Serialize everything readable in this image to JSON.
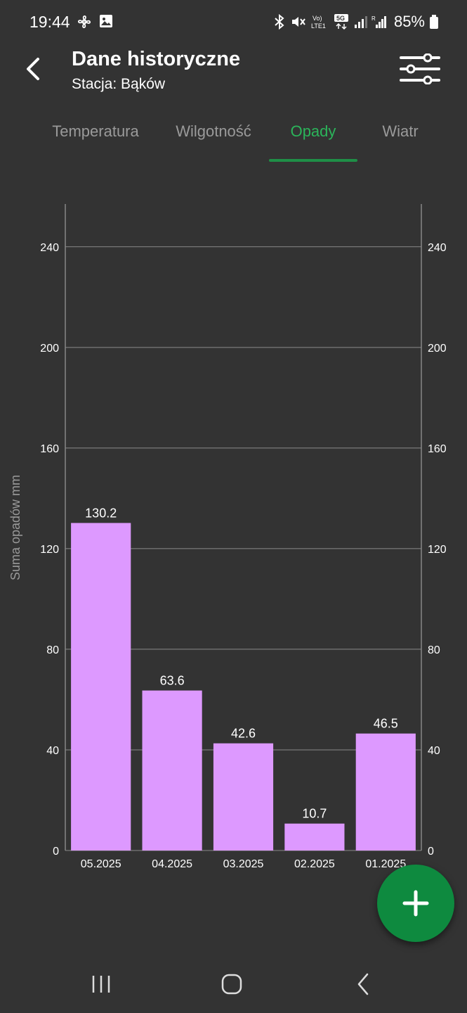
{
  "status": {
    "time": "19:44",
    "battery": "85%",
    "volte_label": "Vo) LTE1",
    "fiveg_label": "5G"
  },
  "header": {
    "title": "Dane historyczne",
    "subtitle": "Stacja: Bąków",
    "back_icon": "chevron-left-icon",
    "filter_icon": "sliders-icon"
  },
  "tabs": [
    {
      "label": "Temperatura",
      "active": false
    },
    {
      "label": "Wilgotność",
      "active": false
    },
    {
      "label": "Opady",
      "active": true
    },
    {
      "label": "Wiatr",
      "active": false
    }
  ],
  "chart_data": {
    "type": "bar",
    "categories": [
      "05.2025",
      "04.2025",
      "03.2025",
      "02.2025",
      "01.2025"
    ],
    "values": [
      130.2,
      63.6,
      42.6,
      10.7,
      46.5
    ],
    "value_labels": [
      "130.2",
      "63.6",
      "42.6",
      "10.7",
      "46.5"
    ],
    "ylabel": "Suma opadów mm",
    "ylim": [
      0,
      257
    ],
    "yticks": [
      0,
      40,
      80,
      120,
      160,
      200,
      240
    ],
    "grid": true,
    "right_axis": true,
    "bar_color": "#dd99ff"
  },
  "colors": {
    "background": "#333333",
    "accent": "#2bb45a",
    "fab": "#0e8a3f"
  },
  "fab": {
    "icon": "plus-icon"
  },
  "navbar": {
    "icons": [
      "recent-apps-icon",
      "home-icon",
      "back-icon"
    ]
  }
}
